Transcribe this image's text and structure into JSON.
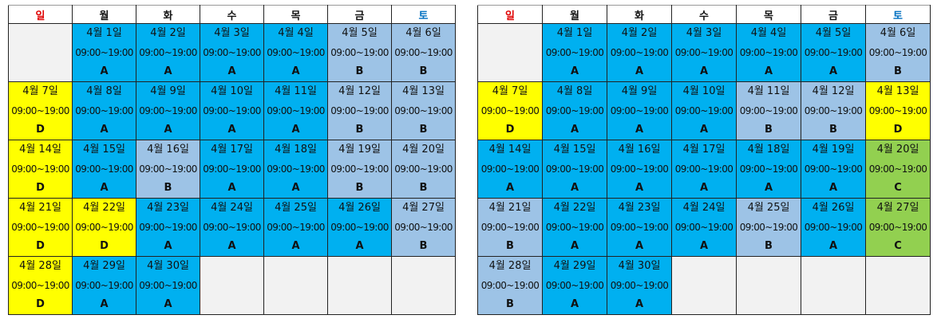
{
  "weekdays": [
    {
      "label": "일",
      "type": "sun"
    },
    {
      "label": "월",
      "type": "day"
    },
    {
      "label": "화",
      "type": "day"
    },
    {
      "label": "수",
      "type": "day"
    },
    {
      "label": "목",
      "type": "day"
    },
    {
      "label": "금",
      "type": "day"
    },
    {
      "label": "토",
      "type": "sat"
    }
  ],
  "shift_colors": {
    "A": "#00b0f0",
    "B": "#9dc3e6",
    "C": "#92d050",
    "D": "#ffff00"
  },
  "calendars": [
    {
      "weeks": [
        [
          null,
          {
            "date": "4월 1일",
            "time": "09:00~19:00",
            "shift": "A"
          },
          {
            "date": "4월 2일",
            "time": "09:00~19:00",
            "shift": "A"
          },
          {
            "date": "4월 3일",
            "time": "09:00~19:00",
            "shift": "A"
          },
          {
            "date": "4월 4일",
            "time": "09:00~19:00",
            "shift": "A"
          },
          {
            "date": "4월 5일",
            "time": "09:00~19:00",
            "shift": "B"
          },
          {
            "date": "4월 6일",
            "time": "09:00~19:00",
            "shift": "B"
          }
        ],
        [
          {
            "date": "4월 7일",
            "time": "09:00~19:00",
            "shift": "D"
          },
          {
            "date": "4월 8일",
            "time": "09:00~19:00",
            "shift": "A"
          },
          {
            "date": "4월 9일",
            "time": "09:00~19:00",
            "shift": "A"
          },
          {
            "date": "4월 10일",
            "time": "09:00~19:00",
            "shift": "A"
          },
          {
            "date": "4월 11일",
            "time": "09:00~19:00",
            "shift": "A"
          },
          {
            "date": "4월 12일",
            "time": "09:00~19:00",
            "shift": "B"
          },
          {
            "date": "4월 13일",
            "time": "09:00~19:00",
            "shift": "B"
          }
        ],
        [
          {
            "date": "4월 14일",
            "time": "09:00~19:00",
            "shift": "D"
          },
          {
            "date": "4월 15일",
            "time": "09:00~19:00",
            "shift": "A"
          },
          {
            "date": "4월 16일",
            "time": "09:00~19:00",
            "shift": "B"
          },
          {
            "date": "4월 17일",
            "time": "09:00~19:00",
            "shift": "A"
          },
          {
            "date": "4월 18일",
            "time": "09:00~19:00",
            "shift": "A"
          },
          {
            "date": "4월 19일",
            "time": "09:00~19:00",
            "shift": "B"
          },
          {
            "date": "4월 20일",
            "time": "09:00~19:00",
            "shift": "B"
          }
        ],
        [
          {
            "date": "4월 21일",
            "time": "09:00~19:00",
            "shift": "D"
          },
          {
            "date": "4월 22일",
            "time": "09:00~19:00",
            "shift": "D"
          },
          {
            "date": "4월 23일",
            "time": "09:00~19:00",
            "shift": "A"
          },
          {
            "date": "4월 24일",
            "time": "09:00~19:00",
            "shift": "A"
          },
          {
            "date": "4월 25일",
            "time": "09:00~19:00",
            "shift": "A"
          },
          {
            "date": "4월 26일",
            "time": "09:00~19:00",
            "shift": "A"
          },
          {
            "date": "4월 27일",
            "time": "09:00~19:00",
            "shift": "B"
          }
        ],
        [
          {
            "date": "4월 28일",
            "time": "09:00~19:00",
            "shift": "D"
          },
          {
            "date": "4월 29일",
            "time": "09:00~19:00",
            "shift": "A"
          },
          {
            "date": "4월 30일",
            "time": "09:00~19:00",
            "shift": "A"
          },
          null,
          null,
          null,
          null
        ]
      ]
    },
    {
      "weeks": [
        [
          null,
          {
            "date": "4월 1일",
            "time": "09:00~19:00",
            "shift": "A"
          },
          {
            "date": "4월 2일",
            "time": "09:00~19:00",
            "shift": "A"
          },
          {
            "date": "4월 3일",
            "time": "09:00~19:00",
            "shift": "A"
          },
          {
            "date": "4월 4일",
            "time": "09:00~19:00",
            "shift": "A"
          },
          {
            "date": "4월 5일",
            "time": "09:00~19:00",
            "shift": "A"
          },
          {
            "date": "4월 6일",
            "time": "09:00~19:00",
            "shift": "B"
          }
        ],
        [
          {
            "date": "4월 7일",
            "time": "09:00~19:00",
            "shift": "D"
          },
          {
            "date": "4월 8일",
            "time": "09:00~19:00",
            "shift": "A"
          },
          {
            "date": "4월 9일",
            "time": "09:00~19:00",
            "shift": "A"
          },
          {
            "date": "4월 10일",
            "time": "09:00~19:00",
            "shift": "A"
          },
          {
            "date": "4월 11일",
            "time": "09:00~19:00",
            "shift": "B"
          },
          {
            "date": "4월 12일",
            "time": "09:00~19:00",
            "shift": "B"
          },
          {
            "date": "4월 13일",
            "time": "09:00~19:00",
            "shift": "D"
          }
        ],
        [
          {
            "date": "4월 14일",
            "time": "09:00~19:00",
            "shift": "A"
          },
          {
            "date": "4월 15일",
            "time": "09:00~19:00",
            "shift": "A"
          },
          {
            "date": "4월 16일",
            "time": "09:00~19:00",
            "shift": "A"
          },
          {
            "date": "4월 17일",
            "time": "09:00~19:00",
            "shift": "A"
          },
          {
            "date": "4월 18일",
            "time": "09:00~19:00",
            "shift": "A"
          },
          {
            "date": "4월 19일",
            "time": "09:00~19:00",
            "shift": "A"
          },
          {
            "date": "4월 20일",
            "time": "09:00~19:00",
            "shift": "C"
          }
        ],
        [
          {
            "date": "4월 21일",
            "time": "09:00~19:00",
            "shift": "B"
          },
          {
            "date": "4월 22일",
            "time": "09:00~19:00",
            "shift": "A"
          },
          {
            "date": "4월 23일",
            "time": "09:00~19:00",
            "shift": "A"
          },
          {
            "date": "4월 24일",
            "time": "09:00~19:00",
            "shift": "A"
          },
          {
            "date": "4월 25일",
            "time": "09:00~19:00",
            "shift": "B"
          },
          {
            "date": "4월 26일",
            "time": "09:00~19:00",
            "shift": "A"
          },
          {
            "date": "4월 27일",
            "time": "09:00~19:00",
            "shift": "C"
          }
        ],
        [
          {
            "date": "4월 28일",
            "time": "09:00~19:00",
            "shift": "B"
          },
          {
            "date": "4월 29일",
            "time": "09:00~19:00",
            "shift": "A"
          },
          {
            "date": "4월 30일",
            "time": "09:00~19:00",
            "shift": "A"
          },
          null,
          null,
          null,
          null
        ]
      ]
    }
  ]
}
